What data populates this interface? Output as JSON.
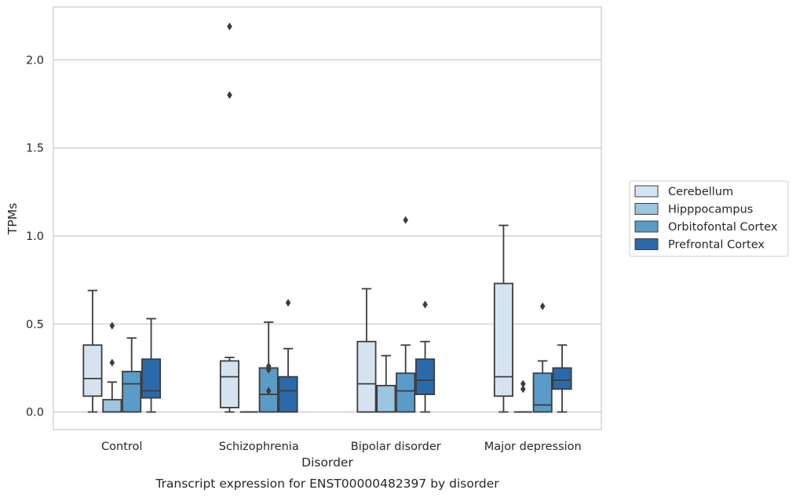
{
  "chart_data": {
    "type": "box",
    "caption": "Transcript expression for ENST00000482397 by disorder",
    "xlabel": "Disorder",
    "ylabel": "TPMs",
    "ylim": [
      -0.1,
      2.3
    ],
    "yticks": [
      0.0,
      0.5,
      1.0,
      1.5,
      2.0
    ],
    "ytick_labels": [
      "0.0",
      "0.5",
      "1.0",
      "1.5",
      "2.0"
    ],
    "grid": "horizontal",
    "legend_position": "right-center",
    "categories": [
      "Control",
      "Schizophrenia",
      "Bipolar disorder",
      "Major depression"
    ],
    "series": [
      {
        "name": "Cerebellum",
        "color": "#d5e3f1",
        "boxes": [
          {
            "whislo": 0.0,
            "q1": 0.09,
            "med": 0.19,
            "q3": 0.38,
            "whishi": 0.69,
            "fliers": []
          },
          {
            "whislo": 0.0,
            "q1": 0.025,
            "med": 0.2,
            "q3": 0.29,
            "whishi": 0.31,
            "fliers": [
              1.8,
              2.19
            ]
          },
          {
            "whislo": 0.0,
            "q1": 0.0,
            "med": 0.16,
            "q3": 0.4,
            "whishi": 0.7,
            "fliers": []
          },
          {
            "whislo": 0.0,
            "q1": 0.09,
            "med": 0.2,
            "q3": 0.73,
            "whishi": 1.06,
            "fliers": []
          }
        ]
      },
      {
        "name": "Hipppocampus",
        "color": "#9cc5df",
        "boxes": [
          {
            "whislo": 0.0,
            "q1": 0.0,
            "med": 0.0,
            "q3": 0.07,
            "whishi": 0.17,
            "fliers": [
              0.28,
              0.49
            ]
          },
          {
            "whislo": 0.0,
            "q1": 0.0,
            "med": 0.0,
            "q3": 0.0,
            "whishi": 0.0,
            "fliers": []
          },
          {
            "whislo": 0.0,
            "q1": 0.0,
            "med": 0.0,
            "q3": 0.15,
            "whishi": 0.32,
            "fliers": []
          },
          {
            "whislo": 0.0,
            "q1": 0.0,
            "med": 0.0,
            "q3": 0.0,
            "whishi": 0.0,
            "fliers": [
              0.13,
              0.16
            ]
          }
        ]
      },
      {
        "name": "Orbitofontal Cortex",
        "color": "#5a9bc8",
        "boxes": [
          {
            "whislo": 0.0,
            "q1": 0.0,
            "med": 0.16,
            "q3": 0.23,
            "whishi": 0.42,
            "fliers": []
          },
          {
            "whislo": 0.0,
            "q1": 0.0,
            "med": 0.1,
            "q3": 0.25,
            "whishi": 0.51,
            "fliers": [
              0.12,
              0.24,
              0.26
            ]
          },
          {
            "whislo": 0.0,
            "q1": 0.0,
            "med": 0.12,
            "q3": 0.22,
            "whishi": 0.38,
            "fliers": [
              1.09
            ]
          },
          {
            "whislo": 0.0,
            "q1": 0.0,
            "med": 0.04,
            "q3": 0.22,
            "whishi": 0.29,
            "fliers": [
              0.6
            ]
          }
        ]
      },
      {
        "name": "Prefrontal Cortex",
        "color": "#2a6aab",
        "boxes": [
          {
            "whislo": 0.0,
            "q1": 0.08,
            "med": 0.12,
            "q3": 0.3,
            "whishi": 0.53,
            "fliers": []
          },
          {
            "whislo": 0.0,
            "q1": 0.0,
            "med": 0.12,
            "q3": 0.2,
            "whishi": 0.36,
            "fliers": [
              0.62
            ]
          },
          {
            "whislo": 0.0,
            "q1": 0.1,
            "med": 0.18,
            "q3": 0.3,
            "whishi": 0.4,
            "fliers": [
              0.61
            ]
          },
          {
            "whislo": 0.0,
            "q1": 0.13,
            "med": 0.18,
            "q3": 0.25,
            "whishi": 0.38,
            "fliers": []
          }
        ]
      }
    ]
  }
}
